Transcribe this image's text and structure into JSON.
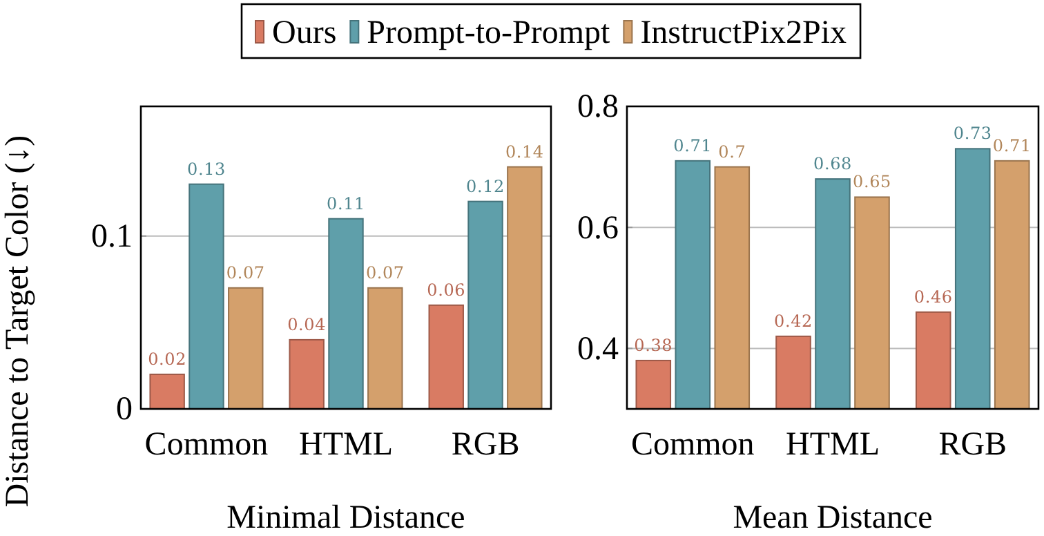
{
  "chart_data": [
    {
      "type": "bar",
      "xlabel": "Minimal Distance",
      "ylabel": "Distance to Target Color (↓)",
      "categories": [
        "Common",
        "HTML",
        "RGB"
      ],
      "series": [
        {
          "name": "Ours",
          "color": "#d97b63",
          "values": [
            0.02,
            0.04,
            0.06
          ]
        },
        {
          "name": "Prompt-to-Prompt",
          "color": "#5f9faa",
          "values": [
            0.13,
            0.11,
            0.12
          ]
        },
        {
          "name": "InstructPix2Pix",
          "color": "#d4a06c",
          "values": [
            0.07,
            0.07,
            0.14
          ]
        }
      ],
      "ylim": [
        0,
        0.175
      ],
      "yticks": [
        0,
        0.1
      ],
      "grid": "y",
      "data_labels": true,
      "legend": "top"
    },
    {
      "type": "bar",
      "xlabel": "Mean Distance",
      "categories": [
        "Common",
        "HTML",
        "RGB"
      ],
      "series": [
        {
          "color": "#d97b63",
          "values": [
            0.38,
            0.42,
            0.46
          ]
        },
        {
          "color": "#5f9faa",
          "values": [
            0.71,
            0.68,
            0.73
          ]
        },
        {
          "color": "#d4a06c",
          "values": [
            0.7,
            0.65,
            0.71
          ]
        }
      ],
      "ylim": [
        0.3,
        0.8
      ],
      "yticks": [
        0.4,
        0.6,
        0.8
      ],
      "grid": "y",
      "data_labels": true
    }
  ]
}
